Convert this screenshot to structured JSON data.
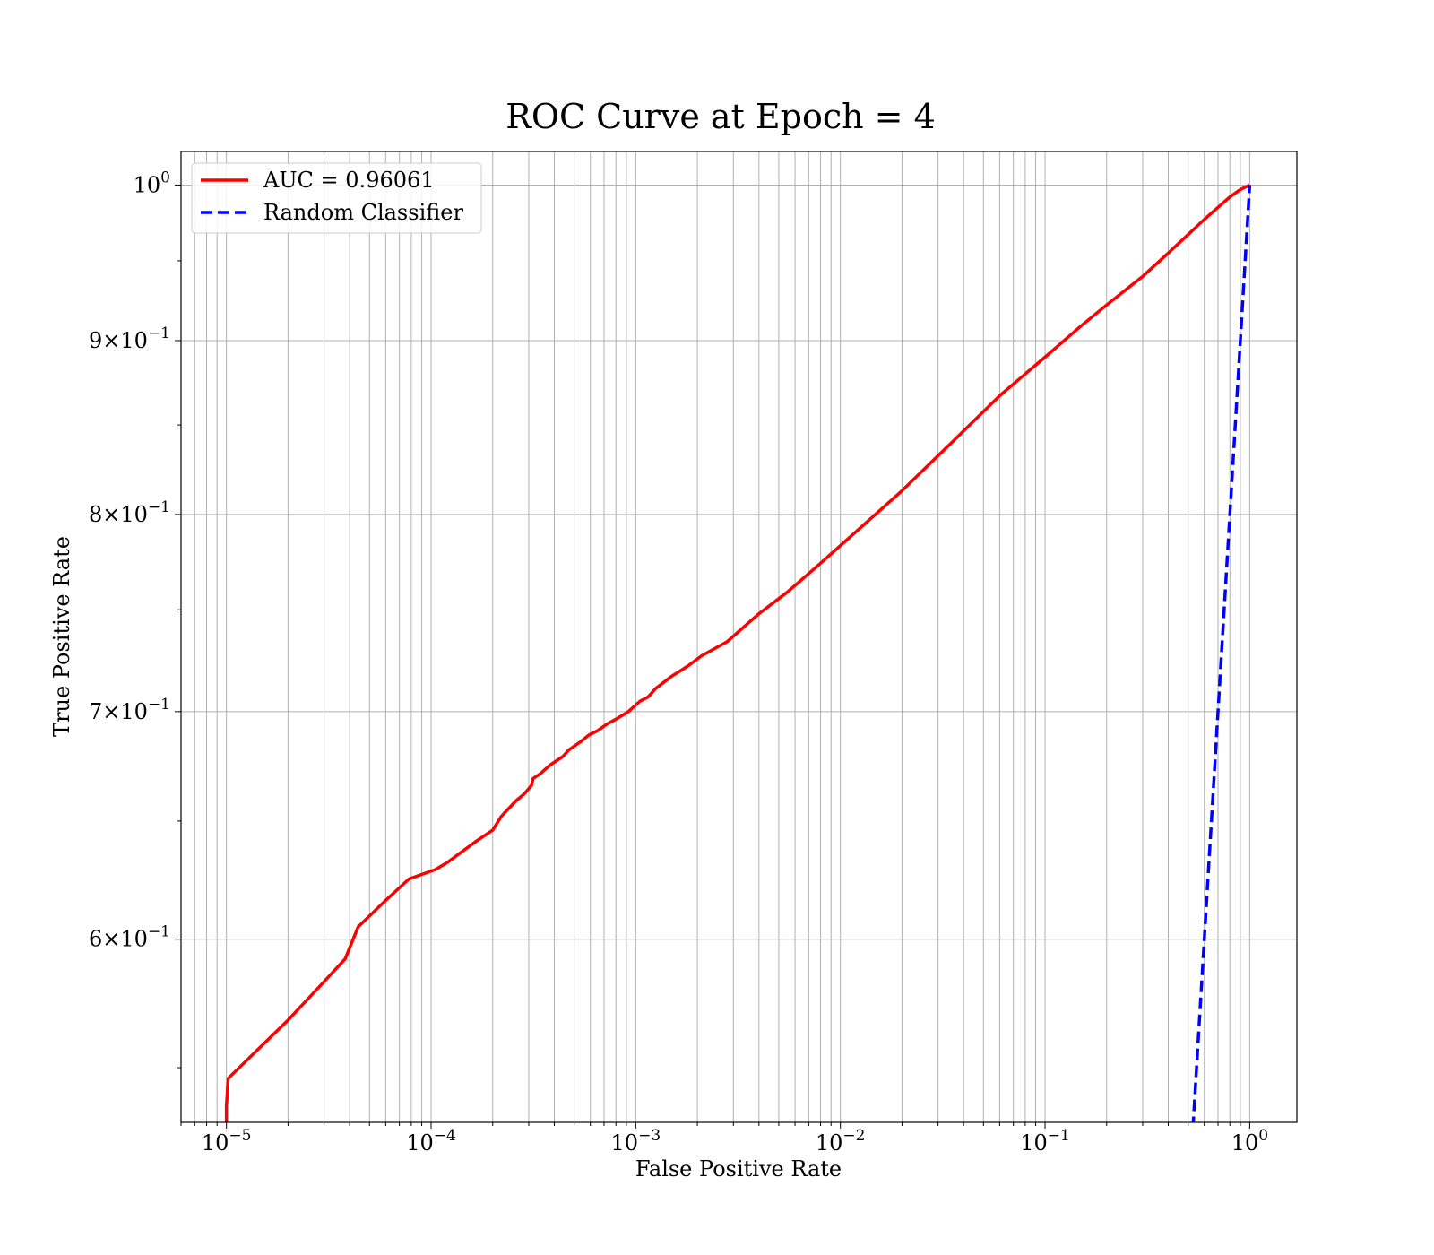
{
  "chart_data": {
    "type": "line",
    "title": "ROC Curve at Epoch = 4",
    "xlabel": "False Positive Rate",
    "ylabel": "True Positive Rate",
    "xscale": "log",
    "yscale": "log",
    "xlim": [
      6e-06,
      1.7
    ],
    "ylim": [
      0.53,
      1.023
    ],
    "grid": "both",
    "legend_position": "top-left",
    "x_ticks": [
      {
        "value": 1e-05,
        "base": "10",
        "exp": "−5"
      },
      {
        "value": 0.0001,
        "base": "10",
        "exp": "−4"
      },
      {
        "value": 0.001,
        "base": "10",
        "exp": "−3"
      },
      {
        "value": 0.01,
        "base": "10",
        "exp": "−2"
      },
      {
        "value": 0.1,
        "base": "10",
        "exp": "−1"
      },
      {
        "value": 1,
        "base": "10",
        "exp": "0"
      }
    ],
    "y_ticks": [
      {
        "value": 1.0,
        "mant": "",
        "base": "10",
        "exp": "0"
      },
      {
        "value": 0.9,
        "mant": "9",
        "base": "10",
        "exp": "−1"
      },
      {
        "value": 0.8,
        "mant": "8",
        "base": "10",
        "exp": "−1"
      },
      {
        "value": 0.7,
        "mant": "7",
        "base": "10",
        "exp": "−1"
      },
      {
        "value": 0.6,
        "mant": "6",
        "base": "10",
        "exp": "−1"
      }
    ],
    "series": [
      {
        "name": "AUC = 0.96061",
        "color": "#ff0000",
        "style": "solid",
        "x": [
          1e-05,
          1e-05,
          1.02e-05,
          2e-05,
          3e-05,
          3.8e-05,
          4.4e-05,
          6e-05,
          7.8e-05,
          0.000105,
          0.00012,
          0.000165,
          0.0002,
          0.00022,
          0.00026,
          0.000285,
          0.00031,
          0.000315,
          0.00034,
          0.00038,
          0.00044,
          0.00047,
          0.00054,
          0.00059,
          0.00065,
          0.00072,
          0.00082,
          0.00092,
          0.00105,
          0.00115,
          0.00125,
          0.0015,
          0.0018,
          0.0021,
          0.0028,
          0.004,
          0.0055,
          0.008,
          0.012,
          0.02,
          0.035,
          0.06,
          0.1,
          0.15,
          0.2,
          0.3,
          0.4,
          0.5,
          0.6,
          0.7,
          0.8,
          0.9,
          1.0
        ],
        "y": [
          0.52,
          0.536,
          0.546,
          0.568,
          0.583,
          0.592,
          0.605,
          0.616,
          0.625,
          0.629,
          0.632,
          0.641,
          0.646,
          0.652,
          0.659,
          0.662,
          0.666,
          0.669,
          0.671,
          0.675,
          0.679,
          0.682,
          0.686,
          0.689,
          0.691,
          0.694,
          0.697,
          0.7,
          0.705,
          0.707,
          0.711,
          0.717,
          0.722,
          0.727,
          0.734,
          0.748,
          0.759,
          0.774,
          0.791,
          0.813,
          0.84,
          0.867,
          0.89,
          0.909,
          0.922,
          0.94,
          0.955,
          0.967,
          0.977,
          0.985,
          0.992,
          0.997,
          1.0
        ]
      },
      {
        "name": "Random Classifier",
        "color": "#0000ff",
        "style": "dashed",
        "x": [
          0.51,
          0.6,
          0.7,
          0.8,
          0.9,
          1.0
        ],
        "y": [
          0.51,
          0.6,
          0.7,
          0.8,
          0.9,
          1.0
        ]
      }
    ]
  }
}
